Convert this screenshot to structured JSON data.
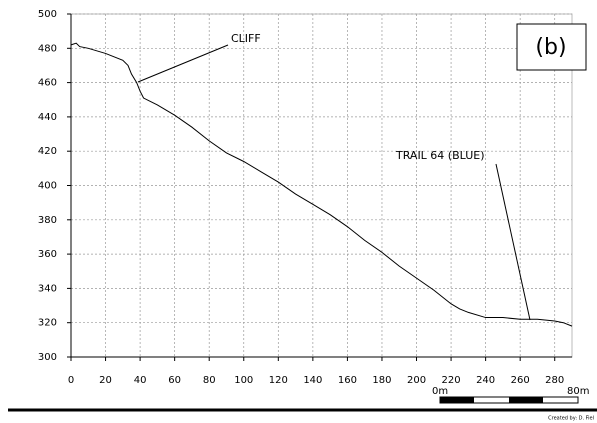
{
  "chart_data": {
    "type": "line",
    "x": [
      0,
      3,
      5,
      10,
      20,
      30,
      33,
      35,
      38,
      40,
      42,
      50,
      60,
      70,
      80,
      90,
      100,
      110,
      120,
      130,
      140,
      150,
      160,
      170,
      180,
      190,
      200,
      210,
      220,
      225,
      230,
      240,
      250,
      260,
      270,
      280,
      285,
      290
    ],
    "series": [
      {
        "color": "#000000",
        "values": [
          482,
          483,
          481,
          480,
          477,
          473,
          470,
          465,
          460,
          455,
          451,
          447,
          441,
          434,
          426,
          419,
          414,
          408,
          402,
          395,
          389,
          383,
          376,
          368,
          361,
          353,
          346,
          339,
          331,
          328,
          326,
          323,
          323,
          322,
          322,
          321,
          320,
          318
        ]
      }
    ],
    "xlim": [
      0,
      290
    ],
    "ylim": [
      300,
      500
    ],
    "xticks": [
      0,
      20,
      40,
      60,
      80,
      100,
      120,
      140,
      160,
      180,
      200,
      220,
      240,
      260,
      280
    ],
    "yticks": [
      300,
      320,
      340,
      360,
      380,
      400,
      420,
      440,
      460,
      480,
      500
    ],
    "grid": true,
    "annotations": [
      "CLIFF",
      "TRAIL 64 (BLUE)"
    ],
    "panel_label": "(b)"
  },
  "scale_bar": {
    "labels": [
      "0m",
      "80m"
    ]
  },
  "credit": "Created by: D. Fiel"
}
